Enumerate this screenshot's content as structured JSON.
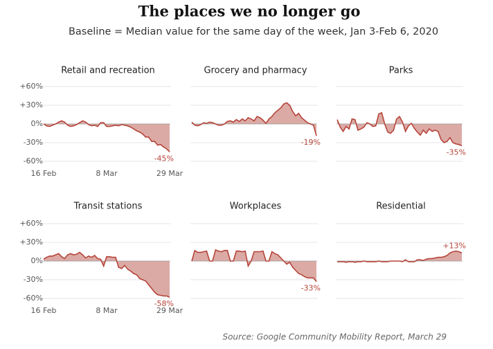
{
  "title": "The places we no longer go",
  "subtitle": "Baseline = Median value for the same day of the week, Jan 3-Feb 6, 2020",
  "source": "Source: Google Community Mobility Report, March 29",
  "categories": [
    "16 Feb",
    null,
    null,
    null,
    null,
    null,
    null,
    null,
    null,
    null,
    null,
    null,
    null,
    null,
    null,
    null,
    null,
    null,
    null,
    null,
    null,
    "8 Mar",
    null,
    null,
    null,
    null,
    null,
    null,
    null,
    null,
    null,
    null,
    null,
    null,
    null,
    null,
    null,
    null,
    null,
    null,
    null,
    null,
    "29 Mar"
  ],
  "ylim": [
    -60,
    60
  ],
  "yticks": [
    {
      "value": 60,
      "label": "+60%"
    },
    {
      "value": 30,
      "label": "+30%"
    },
    {
      "value": 0,
      "label": "0%"
    },
    {
      "value": -30,
      "label": "-30%"
    },
    {
      "value": -60,
      "label": "-60%"
    }
  ],
  "chart_data": [
    {
      "type": "area",
      "title": "Retail and recreation",
      "color": "#b5443a",
      "fill": "#dcaaa5",
      "values": [
        0,
        -3,
        -4,
        -2,
        0,
        3,
        5,
        3,
        -2,
        -4,
        -3,
        -1,
        2,
        5,
        3,
        -1,
        -3,
        -2,
        -4,
        2,
        2,
        -4,
        -4,
        -3,
        -2,
        -3,
        -1,
        -2,
        -3,
        -5,
        -8,
        -11,
        -13,
        -16,
        -21,
        -21,
        -28,
        -28,
        -34,
        -33,
        -37,
        -40,
        -45
      ],
      "value_labels": [
        null,
        null,
        null,
        null,
        null,
        null,
        null,
        null,
        null,
        null,
        null,
        null,
        null,
        null,
        null,
        null,
        null,
        null,
        null,
        null,
        null,
        null,
        null,
        null,
        null,
        null,
        null,
        null,
        null,
        null,
        null,
        null,
        null,
        null,
        null,
        null,
        null,
        null,
        null,
        null,
        null,
        null,
        "-45%"
      ]
    },
    {
      "type": "area",
      "title": "Grocery and pharmacy",
      "color": "#b5443a",
      "fill": "#dcaaa5",
      "values": [
        3,
        -2,
        -3,
        -1,
        2,
        1,
        3,
        2,
        0,
        -2,
        -2,
        0,
        4,
        5,
        3,
        7,
        4,
        8,
        5,
        10,
        8,
        5,
        12,
        10,
        6,
        1,
        8,
        12,
        18,
        22,
        26,
        32,
        34,
        30,
        20,
        13,
        17,
        10,
        6,
        2,
        0,
        -2,
        -19
      ],
      "value_labels": [
        null,
        null,
        null,
        null,
        null,
        null,
        null,
        null,
        null,
        null,
        null,
        null,
        null,
        null,
        null,
        null,
        null,
        null,
        null,
        null,
        null,
        null,
        null,
        null,
        null,
        null,
        null,
        null,
        null,
        null,
        null,
        null,
        null,
        null,
        null,
        null,
        null,
        null,
        null,
        null,
        null,
        null,
        "-19%"
      ]
    },
    {
      "type": "area",
      "title": "Parks",
      "color": "#b5443a",
      "fill": "#dcaaa5",
      "values": [
        7,
        -5,
        -12,
        -4,
        -8,
        8,
        7,
        -10,
        -8,
        -5,
        2,
        0,
        -4,
        -3,
        16,
        18,
        0,
        -13,
        -15,
        -10,
        8,
        12,
        3,
        -12,
        -3,
        1,
        -7,
        -13,
        -18,
        -10,
        -15,
        -8,
        -12,
        -10,
        -12,
        -25,
        -30,
        -28,
        -22,
        -30,
        -32,
        -33,
        -35
      ],
      "value_labels": [
        null,
        null,
        null,
        null,
        null,
        null,
        null,
        null,
        null,
        null,
        null,
        null,
        null,
        null,
        null,
        null,
        null,
        null,
        null,
        null,
        null,
        null,
        null,
        null,
        null,
        null,
        null,
        null,
        null,
        null,
        null,
        null,
        null,
        null,
        null,
        null,
        null,
        null,
        null,
        null,
        null,
        null,
        "-35%"
      ]
    },
    {
      "type": "area",
      "title": "Transit stations",
      "color": "#b5443a",
      "fill": "#dcaaa5",
      "values": [
        3,
        6,
        8,
        8,
        10,
        12,
        7,
        4,
        10,
        12,
        10,
        11,
        14,
        10,
        5,
        8,
        6,
        9,
        4,
        3,
        -8,
        7,
        7,
        6,
        6,
        -10,
        -12,
        -7,
        -13,
        -16,
        -20,
        -22,
        -28,
        -30,
        -32,
        -38,
        -44,
        -50,
        -54,
        -55,
        -56,
        -56,
        -58
      ],
      "value_labels": [
        null,
        null,
        null,
        null,
        null,
        null,
        null,
        null,
        null,
        null,
        null,
        null,
        null,
        null,
        null,
        null,
        null,
        null,
        null,
        null,
        null,
        null,
        null,
        null,
        null,
        null,
        null,
        null,
        null,
        null,
        null,
        null,
        null,
        null,
        null,
        null,
        null,
        null,
        null,
        null,
        null,
        null,
        "-58%"
      ]
    },
    {
      "type": "area",
      "title": "Workplaces",
      "color": "#b5443a",
      "fill": "#dcaaa5",
      "values": [
        0,
        17,
        14,
        14,
        15,
        16,
        0,
        0,
        18,
        16,
        15,
        17,
        17,
        0,
        0,
        16,
        16,
        15,
        16,
        -8,
        0,
        15,
        15,
        15,
        16,
        0,
        0,
        15,
        12,
        10,
        5,
        0,
        -5,
        -2,
        -10,
        -15,
        -20,
        -22,
        -25,
        -27,
        -27,
        -27,
        -33
      ],
      "value_labels": [
        null,
        null,
        null,
        null,
        null,
        null,
        null,
        null,
        null,
        null,
        null,
        null,
        null,
        null,
        null,
        null,
        null,
        null,
        null,
        null,
        null,
        null,
        null,
        null,
        null,
        null,
        null,
        null,
        null,
        null,
        null,
        null,
        null,
        null,
        null,
        null,
        null,
        null,
        null,
        null,
        null,
        null,
        "-33%"
      ]
    },
    {
      "type": "area",
      "title": "Residential",
      "color": "#b5443a",
      "fill": "#dcaaa5",
      "values": [
        -1,
        -1,
        -1,
        -2,
        -1,
        -1,
        -2,
        -1,
        -1,
        0,
        -1,
        -1,
        -1,
        -1,
        0,
        -1,
        -1,
        -1,
        0,
        0,
        0,
        0,
        -1,
        2,
        -1,
        -1,
        -1,
        2,
        2,
        1,
        3,
        4,
        4,
        5,
        6,
        6,
        7,
        9,
        13,
        15,
        16,
        15,
        13
      ],
      "value_labels": [
        null,
        null,
        null,
        null,
        null,
        null,
        null,
        null,
        null,
        null,
        null,
        null,
        null,
        null,
        null,
        null,
        null,
        null,
        null,
        null,
        null,
        null,
        null,
        null,
        null,
        null,
        null,
        null,
        null,
        null,
        null,
        null,
        null,
        null,
        null,
        null,
        null,
        null,
        null,
        null,
        null,
        null,
        "+13%"
      ]
    }
  ]
}
